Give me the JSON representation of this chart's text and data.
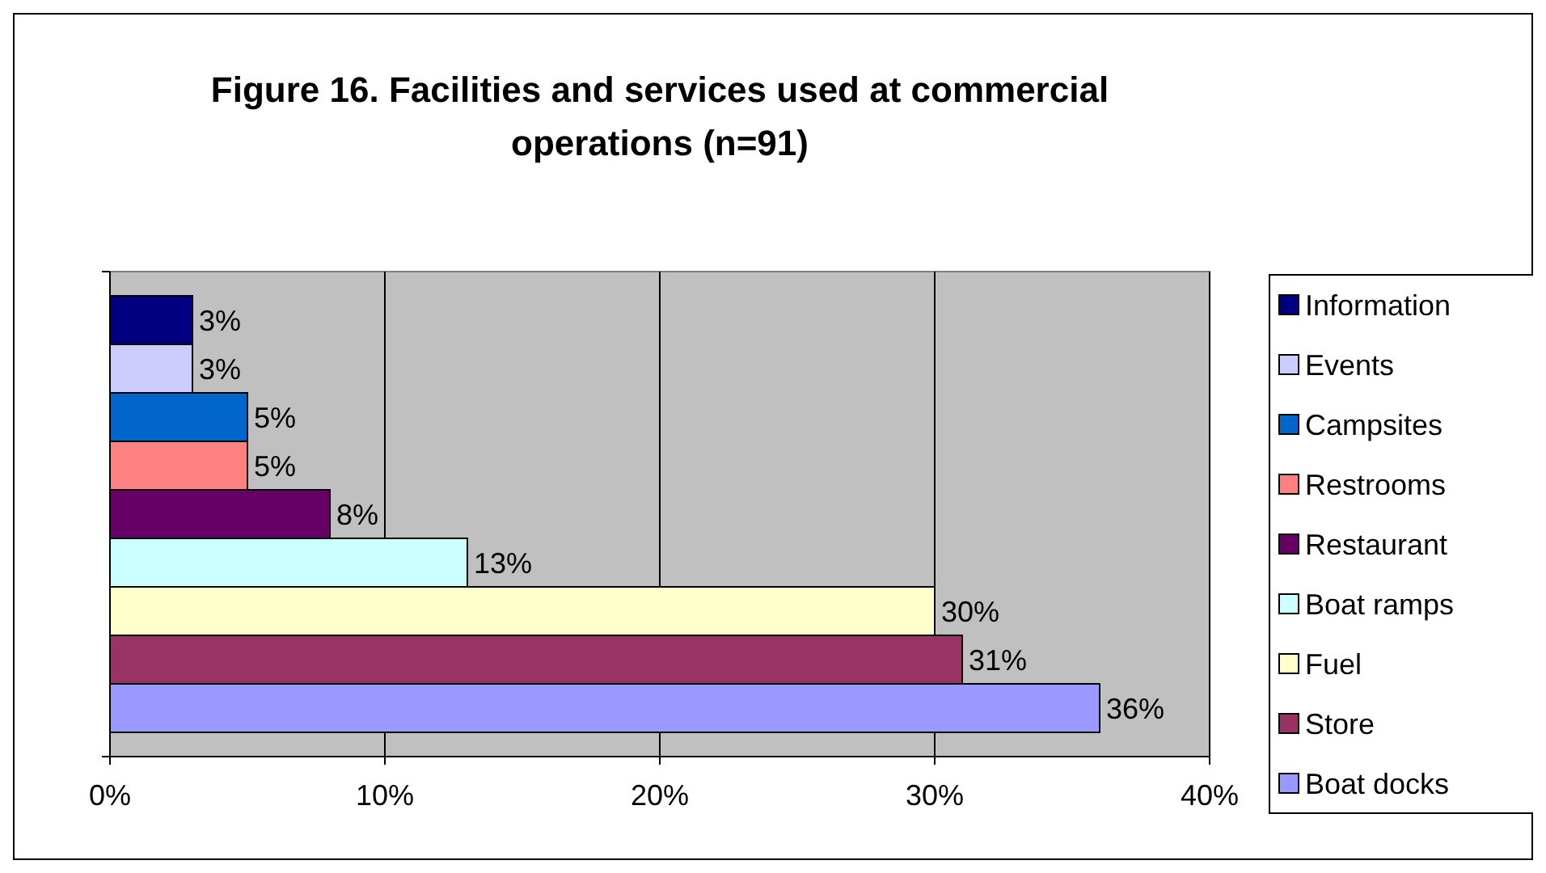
{
  "chart_data": {
    "type": "bar",
    "orientation": "horizontal",
    "title": "Figure 16. Facilities and services used at commercial operations (n=91)",
    "categories": [
      null
    ],
    "series": [
      {
        "name": "Information",
        "color": "#000080",
        "values": [
          3
        ],
        "value_labels": [
          "3%"
        ]
      },
      {
        "name": "Events",
        "color": "#ccccff",
        "values": [
          3
        ],
        "value_labels": [
          "3%"
        ]
      },
      {
        "name": "Campsites",
        "color": "#0066cc",
        "values": [
          5
        ],
        "value_labels": [
          "5%"
        ]
      },
      {
        "name": "Restrooms",
        "color": "#ff8080",
        "values": [
          5
        ],
        "value_labels": [
          "5%"
        ]
      },
      {
        "name": "Restaurant",
        "color": "#660066",
        "values": [
          8
        ],
        "value_labels": [
          "8%"
        ]
      },
      {
        "name": "Boat ramps",
        "color": "#ccffff",
        "values": [
          13
        ],
        "value_labels": [
          "13%"
        ]
      },
      {
        "name": "Fuel",
        "color": "#ffffcc",
        "values": [
          30
        ],
        "value_labels": [
          "30%"
        ]
      },
      {
        "name": "Store",
        "color": "#993366",
        "values": [
          31
        ],
        "value_labels": [
          "31%"
        ]
      },
      {
        "name": "Boat docks",
        "color": "#9999ff",
        "values": [
          36
        ],
        "value_labels": [
          "36%"
        ]
      }
    ],
    "xlim": [
      0,
      40
    ],
    "xticks": [
      {
        "value": 0,
        "label": "0%"
      },
      {
        "value": 10,
        "label": "10%"
      },
      {
        "value": 20,
        "label": "20%"
      },
      {
        "value": 30,
        "label": "30%"
      },
      {
        "value": 40,
        "label": "40%"
      }
    ],
    "grid": "x",
    "legend": "right"
  }
}
